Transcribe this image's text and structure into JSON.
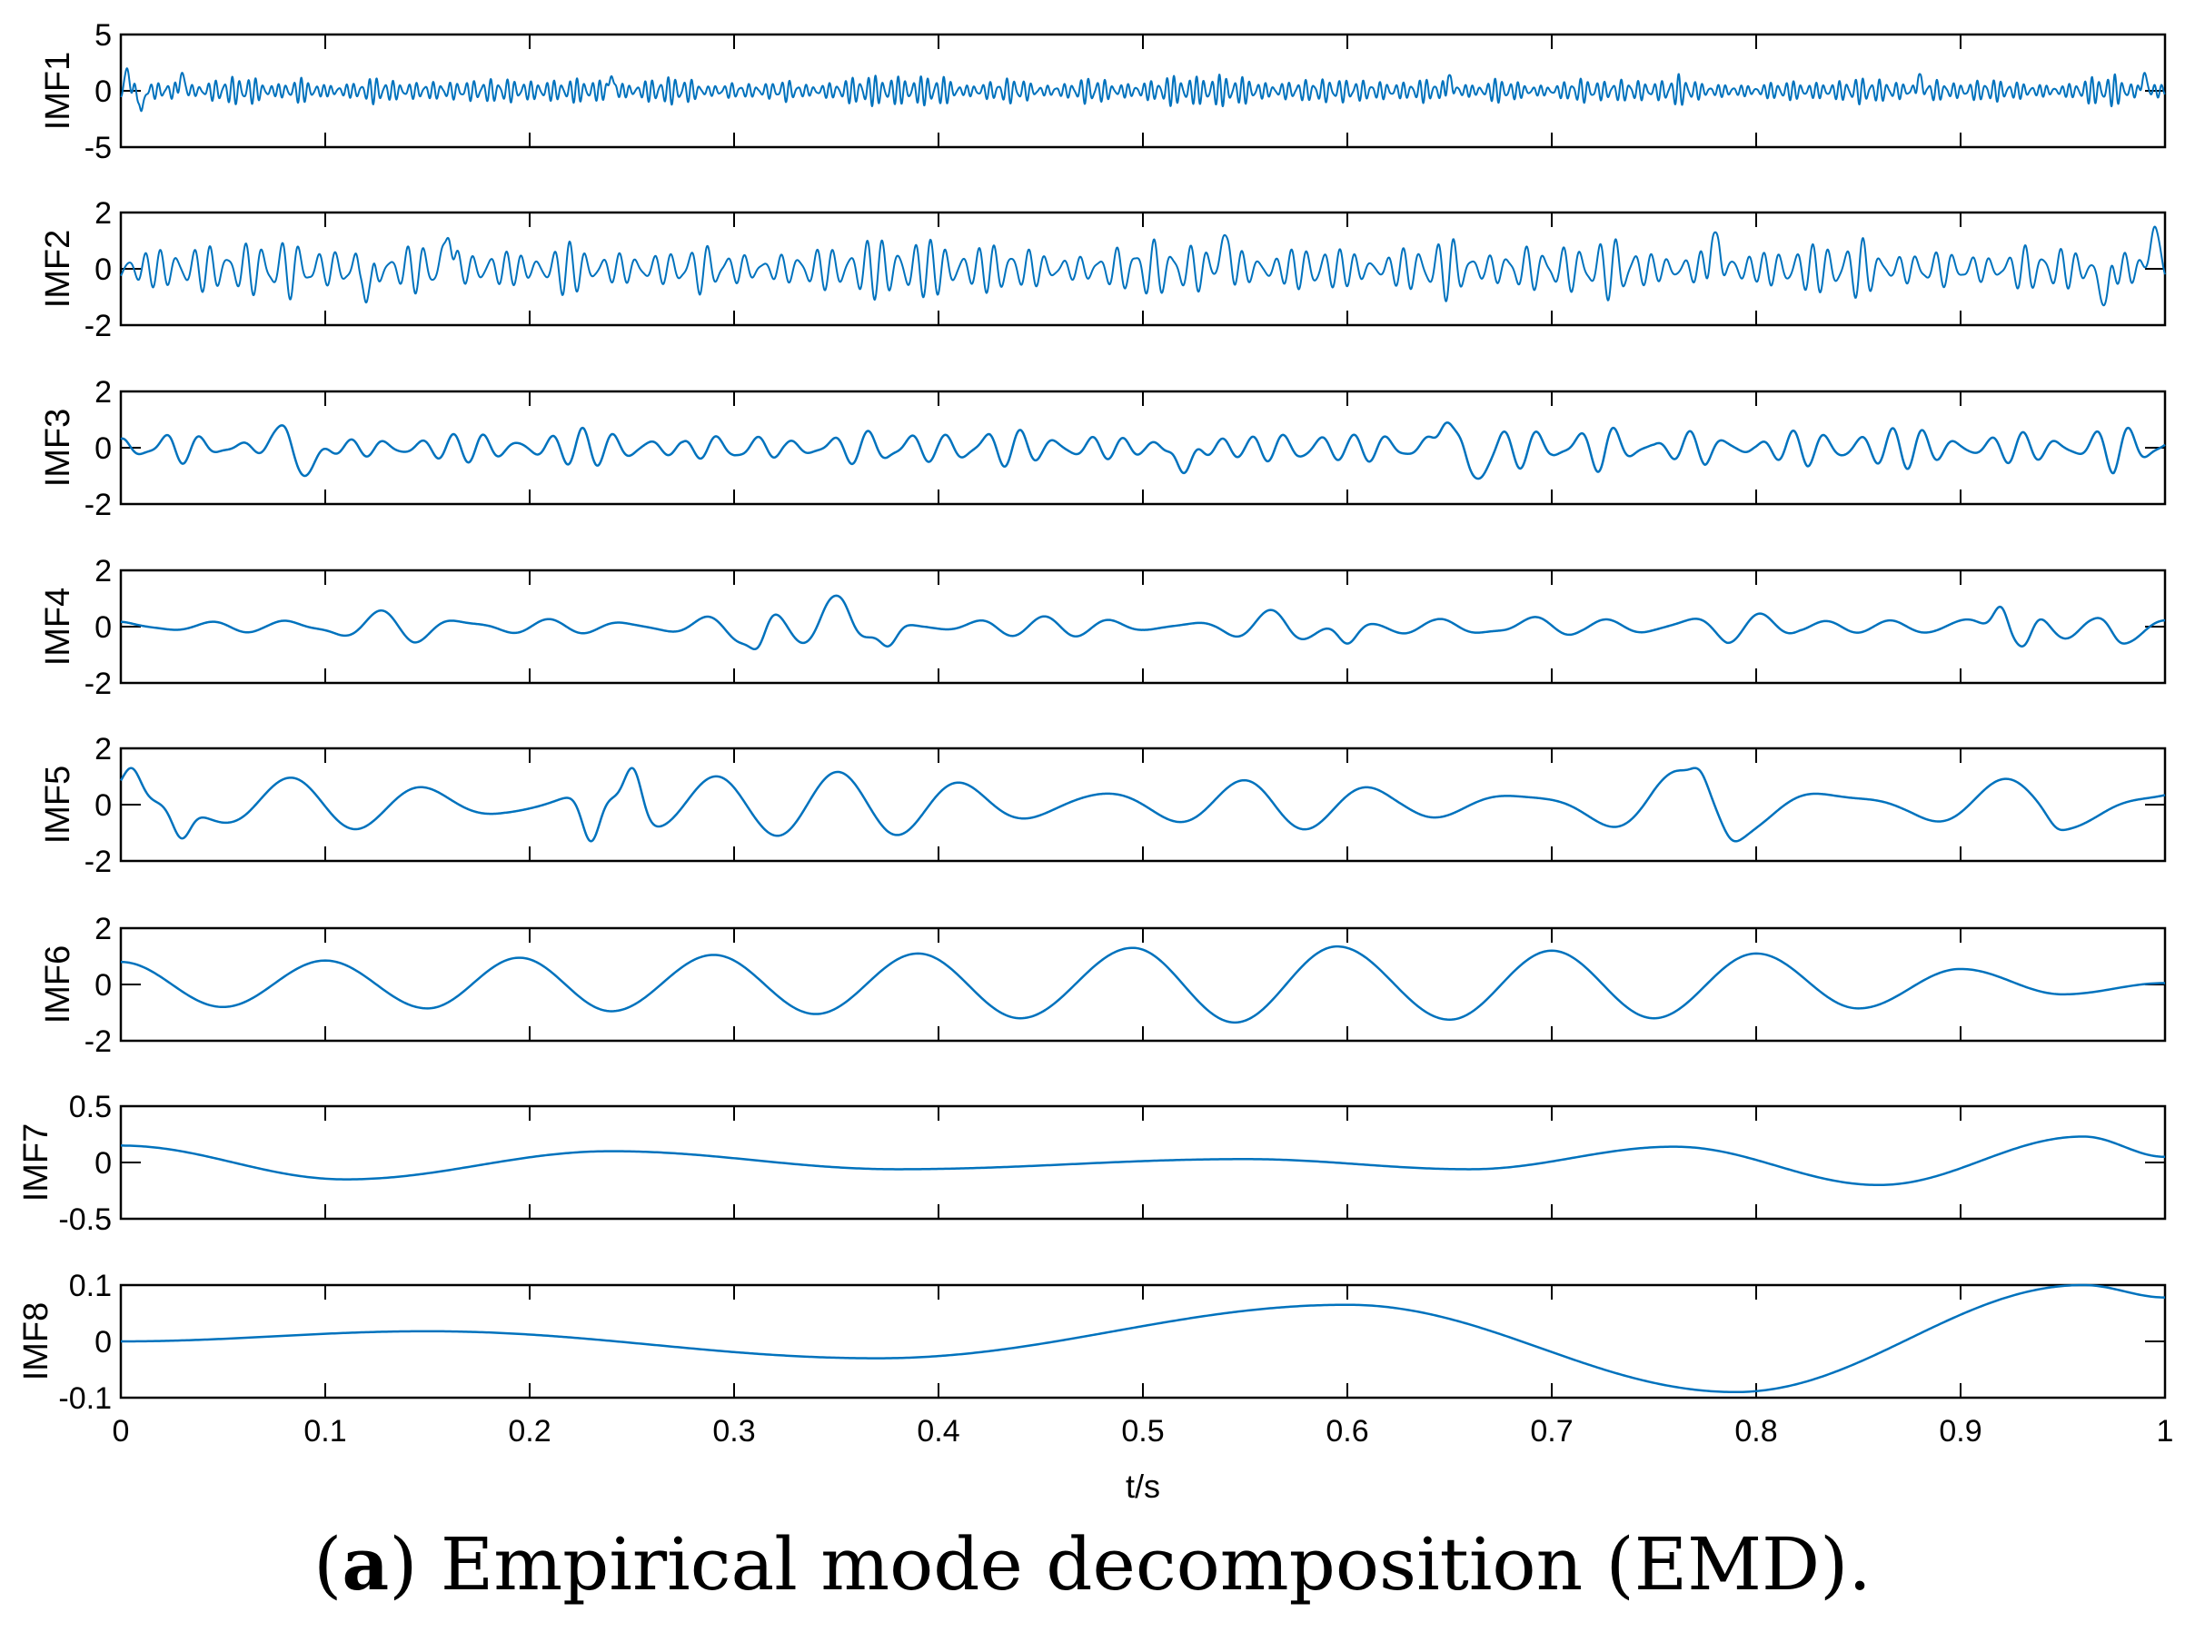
{
  "caption": {
    "open": "(",
    "letter": "a",
    "text": ") Empirical mode decomposition (EMD)."
  },
  "chart_data": {
    "type": "line",
    "line_color": "#0072BD",
    "xlabel": "t/s",
    "xlim": [
      0,
      1
    ],
    "x_ticks": [
      0,
      0.1,
      0.2,
      0.3,
      0.4,
      0.5,
      0.6,
      0.7,
      0.8,
      0.9,
      1
    ],
    "x_tick_labels": [
      "0",
      "0.1",
      "0.2",
      "0.3",
      "0.4",
      "0.5",
      "0.6",
      "0.7",
      "0.8",
      "0.9",
      "1"
    ],
    "panels": [
      {
        "ylabel": "IMF1",
        "ylim": [
          -5,
          5
        ],
        "y_ticks": [
          -5,
          0,
          5
        ],
        "y_tick_labels": [
          "-5",
          "0",
          "5"
        ],
        "signal": "high-frequency oscillation, amplitude about 1-2",
        "peaks": [
          [
            0.003,
            2.0
          ],
          [
            0.01,
            -1.8
          ],
          [
            0.03,
            1.6
          ],
          [
            0.24,
            1.3
          ],
          [
            0.65,
            1.4
          ],
          [
            0.88,
            1.5
          ],
          [
            0.99,
            1.6
          ]
        ]
      },
      {
        "ylabel": "IMF2",
        "ylim": [
          -2,
          2
        ],
        "y_ticks": [
          -2,
          0,
          2
        ],
        "y_tick_labels": [
          "-2",
          "0",
          "2"
        ],
        "signal": "oscillation, amplitude about 0.5-1.3",
        "peaks": [
          [
            0.12,
            1.2
          ],
          [
            0.12,
            -1.1
          ],
          [
            0.12,
            1.2
          ],
          [
            0.12,
            -1.2
          ],
          [
            0.16,
            1.1
          ],
          [
            0.54,
            1.2
          ],
          [
            0.78,
            1.3
          ],
          [
            0.97,
            -1.3
          ],
          [
            0.995,
            1.5
          ]
        ]
      },
      {
        "ylabel": "IMF3",
        "ylim": [
          -2,
          2
        ],
        "y_ticks": [
          -2,
          0,
          2
        ],
        "y_tick_labels": [
          "-2",
          "0",
          "2"
        ],
        "signal": "oscillation, amplitude about 0.3-1",
        "peaks": [
          [
            0.08,
            0.9
          ],
          [
            0.09,
            -1.0
          ],
          [
            0.52,
            0.9
          ],
          [
            0.52,
            -0.9
          ],
          [
            0.649,
            0.9
          ],
          [
            0.664,
            -1.1
          ]
        ]
      },
      {
        "ylabel": "IMF4",
        "ylim": [
          -2,
          2
        ],
        "y_ticks": [
          -2,
          0,
          2
        ],
        "y_tick_labels": [
          "-2",
          "0",
          "2"
        ],
        "signal": "oscillation, amplitude about 0.2-1",
        "peaks": [
          [
            0.31,
            -0.8
          ],
          [
            0.35,
            1.1
          ],
          [
            0.375,
            -0.7
          ],
          [
            0.6,
            -0.6
          ],
          [
            0.92,
            0.8
          ],
          [
            0.93,
            -0.7
          ],
          [
            0.98,
            -0.6
          ]
        ]
      },
      {
        "ylabel": "IMF5",
        "ylim": [
          -2,
          2
        ],
        "y_ticks": [
          -2,
          0,
          2
        ],
        "y_tick_labels": [
          "-2",
          "0",
          "2"
        ],
        "signal": "oscillation, amplitude about 0.5-1.3",
        "peaks": [
          [
            0.005,
            1.3
          ],
          [
            0.03,
            -1.2
          ],
          [
            0.23,
            -1.3
          ],
          [
            0.25,
            1.3
          ],
          [
            0.77,
            1.3
          ],
          [
            0.79,
            -1.3
          ],
          [
            0.95,
            -0.9
          ]
        ]
      },
      {
        "ylabel": "IMF6",
        "ylim": [
          -2,
          2
        ],
        "y_ticks": [
          -2,
          0,
          2
        ],
        "y_tick_labels": [
          "-2",
          "0",
          "2"
        ],
        "signal": "smooth oscillation, amplitude about 1",
        "peaks": [
          [
            0.0,
            0.8
          ],
          [
            0.05,
            -0.8
          ],
          [
            0.1,
            0.85
          ],
          [
            0.15,
            -0.85
          ],
          [
            0.195,
            0.95
          ],
          [
            0.24,
            -0.95
          ],
          [
            0.29,
            1.05
          ],
          [
            0.34,
            -1.05
          ],
          [
            0.39,
            1.1
          ],
          [
            0.44,
            -1.2
          ],
          [
            0.495,
            1.3
          ],
          [
            0.545,
            -1.35
          ],
          [
            0.595,
            1.35
          ],
          [
            0.65,
            -1.25
          ],
          [
            0.7,
            1.2
          ],
          [
            0.75,
            -1.2
          ],
          [
            0.8,
            1.1
          ],
          [
            0.85,
            -0.85
          ],
          [
            0.9,
            0.55
          ],
          [
            0.95,
            -0.35
          ],
          [
            1.0,
            0.05
          ]
        ]
      },
      {
        "ylabel": "IMF7",
        "ylim": [
          -0.5,
          0.5
        ],
        "y_ticks": [
          -0.5,
          0,
          0.5
        ],
        "y_tick_labels": [
          "-0.5",
          "0",
          "0.5"
        ],
        "peaks": [
          [
            0.0,
            0.15
          ],
          [
            0.11,
            -0.15
          ],
          [
            0.24,
            0.1
          ],
          [
            0.38,
            -0.06
          ],
          [
            0.55,
            0.03
          ],
          [
            0.66,
            -0.06
          ],
          [
            0.76,
            0.14
          ],
          [
            0.86,
            -0.2
          ],
          [
            0.96,
            0.23
          ],
          [
            1.0,
            0.05
          ]
        ]
      },
      {
        "ylabel": "IMF8",
        "ylim": [
          -0.1,
          0.1
        ],
        "y_ticks": [
          -0.1,
          0,
          0.1
        ],
        "y_tick_labels": [
          "-0.1",
          "0",
          "0.1"
        ],
        "peaks": [
          [
            0.0,
            0.0
          ],
          [
            0.15,
            0.018
          ],
          [
            0.37,
            -0.03
          ],
          [
            0.6,
            0.065
          ],
          [
            0.79,
            -0.09
          ],
          [
            0.96,
            0.1
          ],
          [
            1.0,
            0.078
          ]
        ]
      }
    ]
  }
}
